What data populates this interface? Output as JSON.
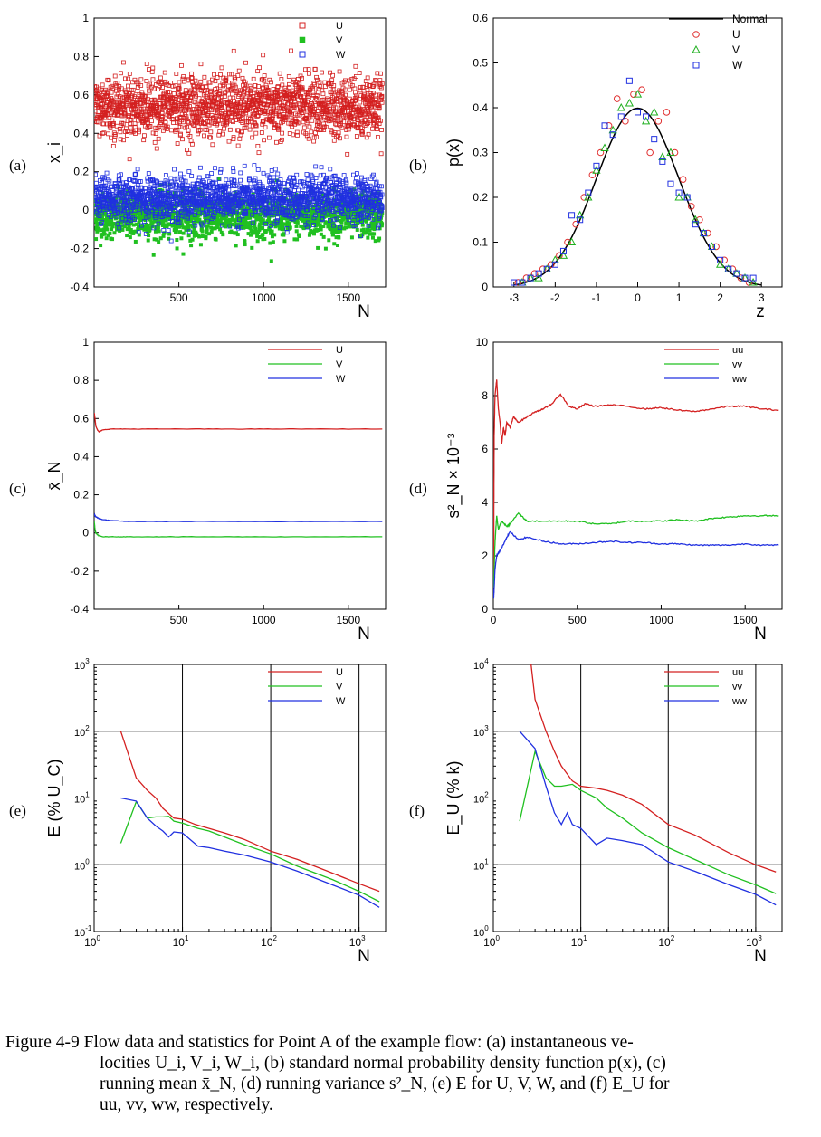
{
  "panel_labels": [
    "(a)",
    "(b)",
    "(c)",
    "(d)",
    "(e)",
    "(f)"
  ],
  "chart_data": [
    {
      "id": "a",
      "type": "scatter",
      "xlabel": "N",
      "ylabel": "x_i",
      "xlim": [
        0,
        1720
      ],
      "ylim": [
        -0.4,
        1
      ],
      "xticks": [
        500,
        1000,
        1500
      ],
      "xticklabels": [
        "500",
        "1000",
        "1500"
      ],
      "yticks": [
        -0.4,
        -0.2,
        0,
        0.2,
        0.4,
        0.6,
        0.8,
        1
      ],
      "yticklabels": [
        "-0.4",
        "-0.2",
        "0",
        "0.2",
        "0.4",
        "0.6",
        "0.8",
        "1"
      ],
      "legend_position": "top-right",
      "n_points": 1700,
      "series": [
        {
          "name": "U",
          "marker": "open-square",
          "color": "#d42020",
          "mean": 0.54,
          "spread": 0.09
        },
        {
          "name": "V",
          "marker": "filled-square",
          "color": "#20c020",
          "mean": -0.03,
          "spread": 0.065
        },
        {
          "name": "W",
          "marker": "open-square",
          "color": "#2030e0",
          "mean": 0.06,
          "spread": 0.065
        }
      ]
    },
    {
      "id": "b",
      "type": "line+scatter",
      "xlabel": "z",
      "ylabel": "p(x)",
      "xlim": [
        -3.5,
        3.5
      ],
      "ylim": [
        0,
        0.6
      ],
      "xticks": [
        -3,
        -2,
        -1,
        0,
        1,
        2,
        3
      ],
      "xticklabels": [
        "-3",
        "-2",
        "-1",
        "0",
        "1",
        "2",
        "3"
      ],
      "yticks": [
        0,
        0.1,
        0.2,
        0.3,
        0.4,
        0.5,
        0.6
      ],
      "yticklabels": [
        "0",
        "0.1",
        "0.2",
        "0.3",
        "0.4",
        "0.5",
        "0.6"
      ],
      "legend_position": "top-right",
      "curve": {
        "name": "Normal",
        "color": "#000000",
        "function": "standard-normal-pdf"
      },
      "series": [
        {
          "name": "U",
          "marker": "circle",
          "color": "#e03030",
          "x": [
            -2.9,
            -2.7,
            -2.5,
            -2.3,
            -2.1,
            -1.9,
            -1.7,
            -1.5,
            -1.3,
            -1.1,
            -0.9,
            -0.7,
            -0.5,
            -0.3,
            -0.1,
            0.1,
            0.3,
            0.5,
            0.7,
            0.9,
            1.1,
            1.3,
            1.5,
            1.7,
            1.9,
            2.1,
            2.3,
            2.5,
            2.7
          ],
          "y": [
            0.01,
            0.02,
            0.03,
            0.04,
            0.05,
            0.07,
            0.1,
            0.14,
            0.2,
            0.25,
            0.3,
            0.36,
            0.42,
            0.37,
            0.43,
            0.44,
            0.3,
            0.37,
            0.39,
            0.3,
            0.24,
            0.18,
            0.15,
            0.12,
            0.09,
            0.06,
            0.04,
            0.02,
            0.01
          ]
        },
        {
          "name": "V",
          "marker": "triangle",
          "color": "#20b020",
          "x": [
            -2.8,
            -2.6,
            -2.4,
            -2.2,
            -2.0,
            -1.8,
            -1.6,
            -1.4,
            -1.2,
            -1.0,
            -0.8,
            -0.6,
            -0.4,
            -0.2,
            0.0,
            0.2,
            0.4,
            0.6,
            0.8,
            1.0,
            1.2,
            1.4,
            1.6,
            1.8,
            2.0,
            2.2,
            2.4,
            2.6,
            2.8
          ],
          "y": [
            0.01,
            0.02,
            0.02,
            0.04,
            0.06,
            0.07,
            0.1,
            0.16,
            0.2,
            0.26,
            0.31,
            0.35,
            0.4,
            0.41,
            0.43,
            0.37,
            0.39,
            0.29,
            0.3,
            0.2,
            0.2,
            0.15,
            0.12,
            0.09,
            0.05,
            0.04,
            0.03,
            0.02,
            0.01
          ]
        },
        {
          "name": "W",
          "marker": "square",
          "color": "#2030e0",
          "x": [
            -3.0,
            -2.8,
            -2.6,
            -2.4,
            -2.2,
            -2.0,
            -1.8,
            -1.6,
            -1.4,
            -1.2,
            -1.0,
            -0.8,
            -0.6,
            -0.4,
            -0.2,
            0.0,
            0.2,
            0.4,
            0.6,
            0.8,
            1.0,
            1.2,
            1.4,
            1.6,
            1.8,
            2.0,
            2.2,
            2.4,
            2.6,
            2.8
          ],
          "y": [
            0.01,
            0.01,
            0.02,
            0.03,
            0.04,
            0.05,
            0.08,
            0.16,
            0.15,
            0.21,
            0.27,
            0.36,
            0.34,
            0.38,
            0.46,
            0.39,
            0.38,
            0.33,
            0.28,
            0.23,
            0.21,
            0.2,
            0.14,
            0.12,
            0.09,
            0.06,
            0.04,
            0.03,
            0.02,
            0.02
          ]
        }
      ]
    },
    {
      "id": "c",
      "type": "line",
      "xlabel": "N",
      "ylabel": "x̄_N",
      "xlim": [
        0,
        1720
      ],
      "ylim": [
        -0.4,
        1
      ],
      "xticks": [
        500,
        1000,
        1500
      ],
      "xticklabels": [
        "500",
        "1000",
        "1500"
      ],
      "yticks": [
        -0.4,
        -0.2,
        0,
        0.2,
        0.4,
        0.6,
        0.8,
        1
      ],
      "yticklabels": [
        "-0.4",
        "-0.2",
        "0",
        "0.2",
        "0.4",
        "0.6",
        "0.8",
        "1"
      ],
      "legend_position": "top-right",
      "series": [
        {
          "name": "U",
          "color": "#d42020",
          "x": [
            1,
            5,
            10,
            20,
            30,
            50,
            100,
            200,
            400,
            700,
            1000,
            1300,
            1700
          ],
          "y": [
            0.63,
            0.6,
            0.56,
            0.54,
            0.53,
            0.54,
            0.545,
            0.545,
            0.545,
            0.545,
            0.545,
            0.545,
            0.545
          ]
        },
        {
          "name": "V",
          "color": "#20c020",
          "x": [
            1,
            5,
            10,
            20,
            30,
            50,
            100,
            200,
            400,
            700,
            1000,
            1300,
            1700
          ],
          "y": [
            0.06,
            0.02,
            0,
            -0.01,
            -0.015,
            -0.02,
            -0.02,
            -0.02,
            -0.02,
            -0.02,
            -0.02,
            -0.02,
            -0.02
          ]
        },
        {
          "name": "W",
          "color": "#2030e0",
          "x": [
            1,
            5,
            10,
            20,
            30,
            50,
            100,
            200,
            400,
            700,
            1000,
            1300,
            1700
          ],
          "y": [
            0.1,
            0.09,
            0.085,
            0.08,
            0.075,
            0.07,
            0.065,
            0.06,
            0.06,
            0.06,
            0.06,
            0.06,
            0.06
          ]
        }
      ]
    },
    {
      "id": "d",
      "type": "line",
      "xlabel": "N",
      "ylabel": "s²_N × 10⁻³",
      "xlim": [
        0,
        1720
      ],
      "ylim": [
        0,
        10
      ],
      "xticks": [
        0,
        500,
        1000,
        1500
      ],
      "xticklabels": [
        "0",
        "500",
        "1000",
        "1500"
      ],
      "yticks": [
        0,
        2,
        4,
        6,
        8,
        10
      ],
      "yticklabels": [
        "0",
        "2",
        "4",
        "6",
        "8",
        "10"
      ],
      "legend_position": "top-right",
      "series": [
        {
          "name": "uu",
          "color": "#d42020",
          "x": [
            2,
            5,
            10,
            20,
            30,
            40,
            50,
            60,
            70,
            80,
            100,
            120,
            150,
            200,
            250,
            300,
            350,
            400,
            450,
            500,
            550,
            600,
            700,
            800,
            900,
            1000,
            1100,
            1200,
            1300,
            1400,
            1500,
            1600,
            1700
          ],
          "y": [
            1.0,
            6.5,
            8.0,
            8.6,
            7.5,
            7.0,
            6.2,
            6.8,
            6.5,
            7.0,
            6.8,
            7.2,
            7.0,
            7.2,
            7.4,
            7.5,
            7.7,
            8.05,
            7.6,
            7.5,
            7.7,
            7.6,
            7.65,
            7.6,
            7.5,
            7.55,
            7.45,
            7.4,
            7.5,
            7.6,
            7.6,
            7.5,
            7.45
          ]
        },
        {
          "name": "vv",
          "color": "#20c020",
          "x": [
            2,
            5,
            10,
            20,
            30,
            50,
            80,
            100,
            150,
            200,
            300,
            400,
            500,
            600,
            700,
            800,
            900,
            1000,
            1100,
            1200,
            1300,
            1400,
            1500,
            1600,
            1700
          ],
          "y": [
            0.8,
            1.5,
            2.5,
            3.5,
            3.0,
            3.3,
            3.1,
            3.2,
            3.6,
            3.3,
            3.3,
            3.3,
            3.3,
            3.2,
            3.2,
            3.3,
            3.3,
            3.3,
            3.35,
            3.3,
            3.4,
            3.45,
            3.5,
            3.5,
            3.5
          ]
        },
        {
          "name": "ww",
          "color": "#2030e0",
          "x": [
            2,
            5,
            10,
            20,
            30,
            50,
            80,
            100,
            150,
            200,
            300,
            400,
            500,
            600,
            700,
            800,
            900,
            1000,
            1100,
            1200,
            1300,
            1400,
            1500,
            1600,
            1700
          ],
          "y": [
            0.4,
            0.8,
            1.5,
            2.0,
            2.1,
            2.3,
            2.7,
            2.9,
            2.6,
            2.7,
            2.55,
            2.45,
            2.45,
            2.5,
            2.55,
            2.5,
            2.5,
            2.45,
            2.45,
            2.4,
            2.4,
            2.4,
            2.45,
            2.4,
            2.4
          ]
        }
      ]
    },
    {
      "id": "e",
      "type": "line",
      "xscale": "log",
      "yscale": "log",
      "xlabel": "N",
      "ylabel": "E (% U_C)",
      "xlim": [
        1,
        2000
      ],
      "ylim": [
        0.1,
        1000
      ],
      "xticks": [
        1,
        10,
        100,
        1000
      ],
      "xtick_exp": [
        "0",
        "1",
        "2",
        "3"
      ],
      "yticks": [
        0.1,
        1,
        10,
        100,
        1000
      ],
      "ytick_exp": [
        "-1",
        "0",
        "1",
        "2",
        "3"
      ],
      "grid": true,
      "legend_position": "top-right",
      "series": [
        {
          "name": "U",
          "color": "#d42020",
          "x": [
            2,
            3,
            4,
            5,
            6,
            8,
            10,
            14,
            20,
            30,
            50,
            100,
            200,
            500,
            1000,
            1700
          ],
          "y": [
            100,
            20,
            13,
            10,
            7,
            5,
            4.8,
            4,
            3.5,
            3,
            2.4,
            1.6,
            1.2,
            0.75,
            0.52,
            0.4
          ]
        },
        {
          "name": "V",
          "color": "#20c020",
          "x": [
            2,
            3,
            4,
            5,
            6,
            7,
            8,
            10,
            15,
            20,
            30,
            50,
            100,
            200,
            500,
            1000,
            1700
          ],
          "y": [
            2.1,
            8.8,
            5,
            5.2,
            5.2,
            5.3,
            4.5,
            4.2,
            3.5,
            3.2,
            2.6,
            2.0,
            1.45,
            0.95,
            0.6,
            0.4,
            0.28
          ]
        },
        {
          "name": "W",
          "color": "#2030e0",
          "x": [
            2,
            3,
            4,
            5,
            6,
            7,
            8,
            10,
            15,
            20,
            30,
            50,
            100,
            200,
            500,
            1000,
            1700
          ],
          "y": [
            10,
            9,
            5,
            3.8,
            3.2,
            2.6,
            3.1,
            3,
            1.9,
            1.8,
            1.6,
            1.4,
            1.1,
            0.8,
            0.5,
            0.35,
            0.23
          ]
        }
      ]
    },
    {
      "id": "f",
      "type": "line",
      "xscale": "log",
      "yscale": "log",
      "xlabel": "N",
      "ylabel": "E_U (% k)",
      "xlim": [
        1,
        2000
      ],
      "ylim": [
        1,
        10000
      ],
      "xticks": [
        1,
        10,
        100,
        1000
      ],
      "xtick_exp": [
        "0",
        "1",
        "2",
        "3"
      ],
      "yticks": [
        1,
        10,
        100,
        1000,
        10000
      ],
      "ytick_exp": [
        "0",
        "1",
        "2",
        "3",
        "4"
      ],
      "grid": true,
      "legend_position": "top-right",
      "series": [
        {
          "name": "uu",
          "color": "#d42020",
          "x": [
            2.7,
            3,
            4,
            5,
            6,
            8,
            10,
            15,
            20,
            30,
            50,
            100,
            200,
            500,
            1000,
            1700
          ],
          "y": [
            10000,
            3000,
            1000,
            500,
            300,
            180,
            150,
            140,
            130,
            110,
            80,
            40,
            28,
            15,
            10,
            7.8
          ]
        },
        {
          "name": "vv",
          "color": "#20c020",
          "x": [
            2,
            3,
            4,
            5,
            6,
            8,
            10,
            15,
            20,
            30,
            50,
            100,
            200,
            500,
            1000,
            1700
          ],
          "y": [
            45,
            500,
            200,
            150,
            150,
            160,
            130,
            100,
            70,
            50,
            30,
            18,
            12,
            7,
            5,
            3.7
          ]
        },
        {
          "name": "ww",
          "color": "#2030e0",
          "x": [
            2,
            3,
            4,
            5,
            6,
            7,
            8,
            10,
            15,
            20,
            30,
            50,
            100,
            200,
            500,
            1000,
            1700
          ],
          "y": [
            1000,
            550,
            150,
            60,
            40,
            60,
            40,
            35,
            20,
            25,
            23,
            20,
            11,
            8,
            5,
            3.6,
            2.5
          ]
        }
      ]
    }
  ],
  "caption": {
    "line1": "Figure 4-9 Flow data and statistics for Point A of the example flow: (a) instantaneous ve-",
    "line2": "locities U_i, V_i, W_i, (b) standard normal probability density function p(x), (c)",
    "line3": "running mean x̄_N, (d) running variance s²_N, (e) E for U, V, W, and (f) E_U for",
    "line4": "uu, vv, ww, respectively."
  }
}
